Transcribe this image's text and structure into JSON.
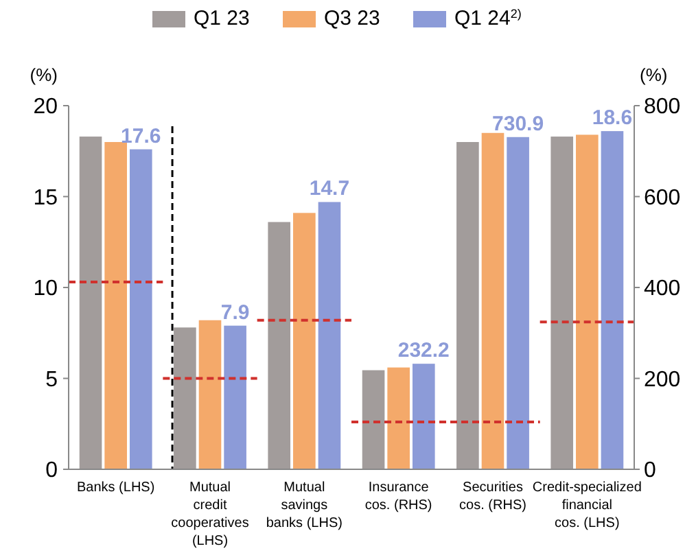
{
  "chart_data": {
    "type": "bar",
    "categories": [
      "Banks (LHS)",
      "Mutual credit cooperatives (LHS)",
      "Mutual savings banks (LHS)",
      "Insurance cos. (RHS)",
      "Securities cos. (RHS)",
      "Credit-specialized financial cos. (LHS)"
    ],
    "ylabel": "(%)",
    "y2label": "(%)",
    "ylim": [
      0,
      20
    ],
    "yticks": [
      0,
      5,
      10,
      15,
      20
    ],
    "y2lim": [
      0,
      800
    ],
    "y2ticks": [
      0,
      200,
      400,
      600,
      800
    ],
    "series": [
      {
        "name": "Q1 23",
        "color": "#a29c9b",
        "values": [
          18.3,
          7.8,
          13.6,
          null,
          null,
          18.3
        ]
      },
      {
        "name": "Q3 23",
        "color": "#f4a96a",
        "values": [
          18.0,
          8.2,
          14.1,
          null,
          null,
          18.4
        ]
      },
      {
        "name": "Q1 24$^{2)}$",
        "color": "#8c9bd8",
        "values": [
          17.6,
          7.9,
          14.7,
          null,
          null,
          18.6
        ],
        "value_labels": [
          "17.6",
          "7.9",
          "14.7",
          null,
          null,
          "18.6"
        ]
      },
      {
        "color": "#a29c9b",
        "axis": "y2",
        "values": [
          null,
          null,
          null,
          218,
          720,
          null
        ]
      },
      {
        "color": "#f4a96a",
        "axis": "y2",
        "values": [
          null,
          null,
          null,
          224,
          740,
          null
        ]
      },
      {
        "color": "#8c9bd8",
        "axis": "y2",
        "values": [
          null,
          null,
          null,
          232.2,
          730.9,
          null
        ],
        "value_labels": [
          null,
          null,
          null,
          "232.2",
          "730.9",
          null
        ]
      }
    ],
    "ref_lines": [
      {
        "axis": "y",
        "value": 10.3,
        "color": "#d0312d",
        "line_style": "dashed"
      },
      {
        "axis": "y",
        "value": 5.0,
        "color": "#d0312d",
        "line_style": "dashed"
      },
      {
        "axis": "y",
        "value": 8.2,
        "color": "#d0312d",
        "line_style": "dashed"
      },
      {
        "axis": "y2",
        "value": 104,
        "color": "#d0312d",
        "line_style": "dashed"
      },
      {
        "axis": "y",
        "value": 8.1,
        "color": "#d0312d",
        "line_style": "dashed"
      }
    ],
    "legend": "top",
    "grid": false
  }
}
